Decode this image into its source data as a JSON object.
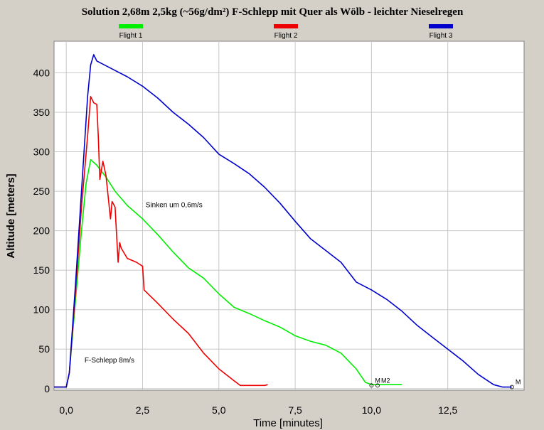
{
  "chart_data": {
    "type": "line",
    "title": "Solution 2,68m 2,5kg (~56g/dm²) F-Schlepp mit Quer als Wölb - leichter Nieselregen",
    "xlabel": "Time [minutes]",
    "ylabel": "Altitude [meters]",
    "xlim": [
      -0.4,
      15.0
    ],
    "ylim": [
      -2,
      440
    ],
    "x_ticks": [
      0,
      2.5,
      5,
      7.5,
      10,
      12.5
    ],
    "x_tick_labels": [
      "0,0",
      "2,5",
      "5,0",
      "7,5",
      "10,0",
      "12,5"
    ],
    "y_ticks": [
      0,
      50,
      100,
      150,
      200,
      250,
      300,
      350,
      400
    ],
    "y_tick_labels": [
      "0",
      "50",
      "100",
      "150",
      "200",
      "250",
      "300",
      "350",
      "400"
    ],
    "grid": true,
    "legend_position": "top",
    "annotations": [
      {
        "text": "Sinken um 0,6m/s",
        "x": 2.6,
        "y": 230
      },
      {
        "text": "F-Schlepp 8m/s",
        "x": 0.6,
        "y": 33
      }
    ],
    "end_markers": [
      {
        "text": "M",
        "x": 14.6,
        "y": 2
      },
      {
        "text": "M",
        "x": 10.0,
        "y": 4
      },
      {
        "text": "M2",
        "x": 10.2,
        "y": 4
      }
    ],
    "series": [
      {
        "name": "Flight 1",
        "color": "#00ee00",
        "x": [
          -0.4,
          0.0,
          0.1,
          0.3,
          0.5,
          0.65,
          0.8,
          1.0,
          1.3,
          1.6,
          2.0,
          2.5,
          3.0,
          3.5,
          4.0,
          4.5,
          5.0,
          5.5,
          6.0,
          6.5,
          7.0,
          7.5,
          8.0,
          8.5,
          9.0,
          9.5,
          9.8,
          10.0,
          10.5,
          11.0
        ],
        "y": [
          2,
          2,
          20,
          110,
          200,
          260,
          290,
          283,
          268,
          250,
          232,
          215,
          195,
          173,
          153,
          140,
          120,
          103,
          95,
          86,
          78,
          67,
          60,
          55,
          45,
          25,
          8,
          5,
          5,
          5
        ]
      },
      {
        "name": "Flight 2",
        "color": "#ee0000",
        "x": [
          -0.4,
          0.0,
          0.1,
          0.3,
          0.5,
          0.7,
          0.8,
          0.9,
          1.0,
          1.05,
          1.1,
          1.2,
          1.3,
          1.45,
          1.5,
          1.6,
          1.7,
          1.75,
          1.8,
          2.0,
          2.3,
          2.5,
          2.55,
          3.0,
          3.5,
          4.0,
          4.5,
          5.0,
          5.5,
          5.7,
          6.0,
          6.5,
          6.6
        ],
        "y": [
          2,
          2,
          20,
          120,
          230,
          320,
          370,
          362,
          360,
          320,
          265,
          288,
          270,
          215,
          237,
          230,
          160,
          185,
          178,
          165,
          160,
          155,
          125,
          108,
          88,
          70,
          45,
          25,
          10,
          4,
          4,
          4,
          5
        ]
      },
      {
        "name": "Flight 3",
        "color": "#0000cc",
        "x": [
          -0.4,
          0.0,
          0.1,
          0.3,
          0.5,
          0.7,
          0.8,
          0.9,
          1.0,
          1.5,
          2.0,
          2.5,
          3.0,
          3.5,
          4.0,
          4.5,
          5.0,
          5.5,
          6.0,
          6.5,
          7.0,
          7.5,
          8.0,
          8.5,
          9.0,
          9.5,
          10.0,
          10.5,
          11.0,
          11.5,
          12.0,
          12.5,
          13.0,
          13.5,
          14.0,
          14.3,
          14.6
        ],
        "y": [
          2,
          2,
          20,
          130,
          250,
          370,
          410,
          423,
          415,
          405,
          395,
          383,
          368,
          350,
          335,
          318,
          297,
          285,
          272,
          255,
          235,
          212,
          190,
          175,
          160,
          135,
          125,
          113,
          98,
          80,
          65,
          50,
          35,
          18,
          5,
          2,
          2
        ]
      }
    ]
  }
}
